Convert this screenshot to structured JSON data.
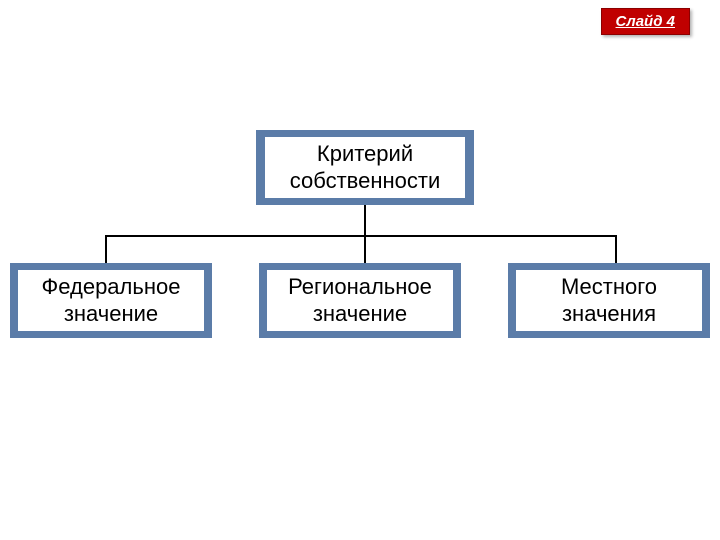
{
  "badge": {
    "label": "Слайд 4",
    "bg_color": "#c00000",
    "text_color": "#ffffff"
  },
  "diagram": {
    "type": "tree",
    "root": {
      "label": "Критерий собственности"
    },
    "children": [
      {
        "label": "Федеральное значение"
      },
      {
        "label": "Региональное значение"
      },
      {
        "label": "Местного значения"
      }
    ],
    "node_bg": "#5b7ca8",
    "node_inner_bg": "#ffffff",
    "node_text_color": "#000000",
    "connector_color": "#000000",
    "font_size": 22
  }
}
